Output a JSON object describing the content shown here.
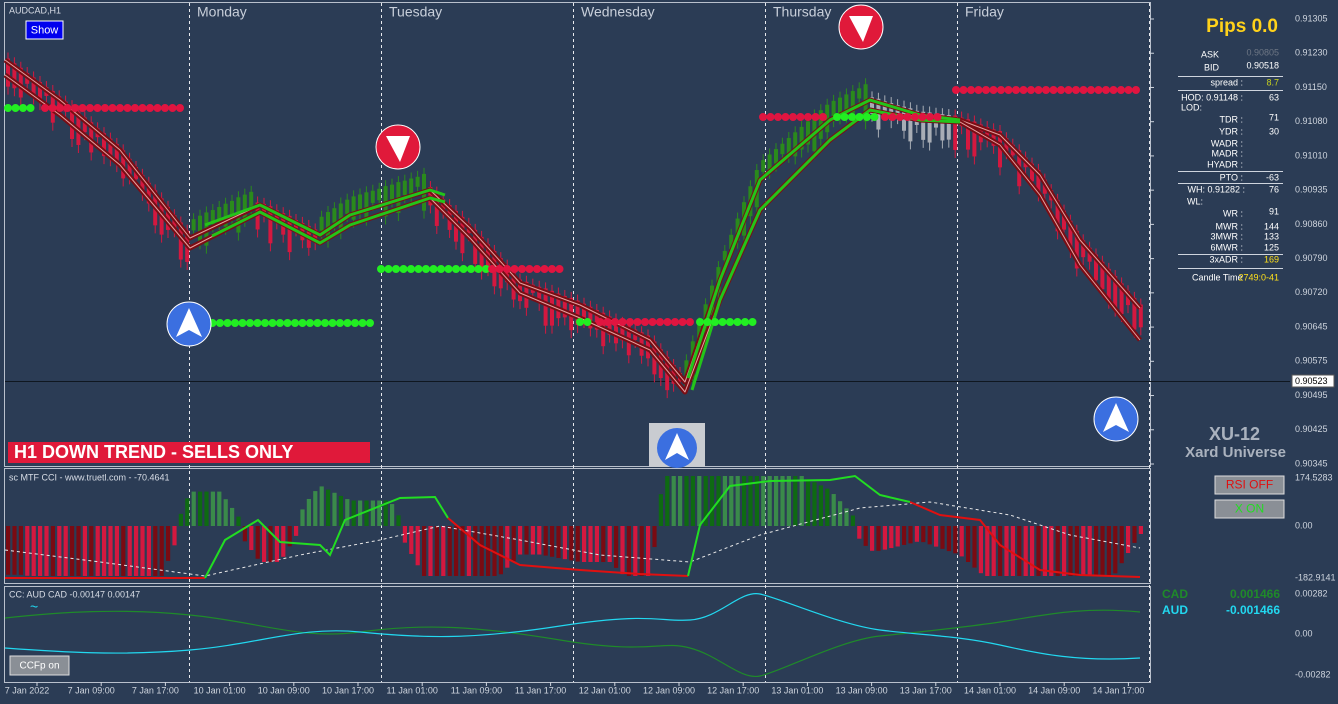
{
  "window": {
    "symbol": "AUDCAD,H1",
    "show_button": "Show"
  },
  "days": [
    "Monday",
    "Tuesday",
    "Wednesday",
    "Thursday",
    "Friday"
  ],
  "price_axis": [
    "0.91305",
    "0.91230",
    "0.91150",
    "0.91080",
    "0.91010",
    "0.90935",
    "0.90860",
    "0.90790",
    "0.90720",
    "0.90645",
    "0.90575",
    "0.90495",
    "0.90425",
    "0.90345"
  ],
  "current_price": "0.90523",
  "panel": {
    "pips": "Pips 0.0",
    "ask_label": "ASK",
    "ask": "0.90805",
    "bid_label": "BID",
    "bid": "0.90518",
    "spread_label": "spread :",
    "spread": "8.7",
    "hod_label": "HOD: 0.91148 :",
    "hod": "63",
    "lod_label": "LOD:",
    "tdr_label": "TDR :",
    "tdr": "71",
    "ydr_label": "YDR :",
    "ydr": "30",
    "wadr_label": "WADR :",
    "madr_label": "MADR :",
    "hyadr_label": "HYADR :",
    "pto_label": "PTO :",
    "pto": "-63",
    "wh_label": "WH: 0.91282 :",
    "wh": "76",
    "wl_label": "WL:",
    "wr_label": "WR :",
    "wr": "91",
    "mwr_label": "MWR :",
    "mwr": "144",
    "mwr3_label": "3MWR :",
    "mwr3": "133",
    "mwr6_label": "6MWR :",
    "mwr6": "125",
    "adr3_label": "3xADR :",
    "adr3": "169",
    "candle_label": "Candle Time",
    "candle": "2749:0-41"
  },
  "trend_banner": "H1  DOWN TREND - SELLS ONLY",
  "brand": {
    "code": "XU-12",
    "name": "Xard Universe"
  },
  "cci": {
    "title": "sc MTF CCI - www.truetl.com - -70.4641",
    "axis": [
      "174.5283",
      "0.00",
      "-182.9141"
    ],
    "rsi_button": "RSI OFF",
    "x_button": "X ON"
  },
  "ccfp": {
    "title": "CC:  AUD CAD -0.00147 0.00147",
    "cad_label": "CAD",
    "cad": "0.001466",
    "aud_label": "AUD",
    "aud": "-0.001466",
    "axis": [
      "0.00282",
      "0.00",
      "-0.00282"
    ],
    "button": "CCFp on"
  },
  "time_axis": [
    "7 Jan 2022",
    "7 Jan 09:00",
    "7 Jan 17:00",
    "10 Jan 01:00",
    "10 Jan 09:00",
    "10 Jan 17:00",
    "11 Jan 01:00",
    "11 Jan 09:00",
    "11 Jan 17:00",
    "12 Jan 01:00",
    "12 Jan 09:00",
    "12 Jan 17:00",
    "13 Jan 01:00",
    "13 Jan 09:00",
    "13 Jan 17:00",
    "14 Jan 01:00",
    "14 Jan 09:00",
    "14 Jan 17:00"
  ]
}
